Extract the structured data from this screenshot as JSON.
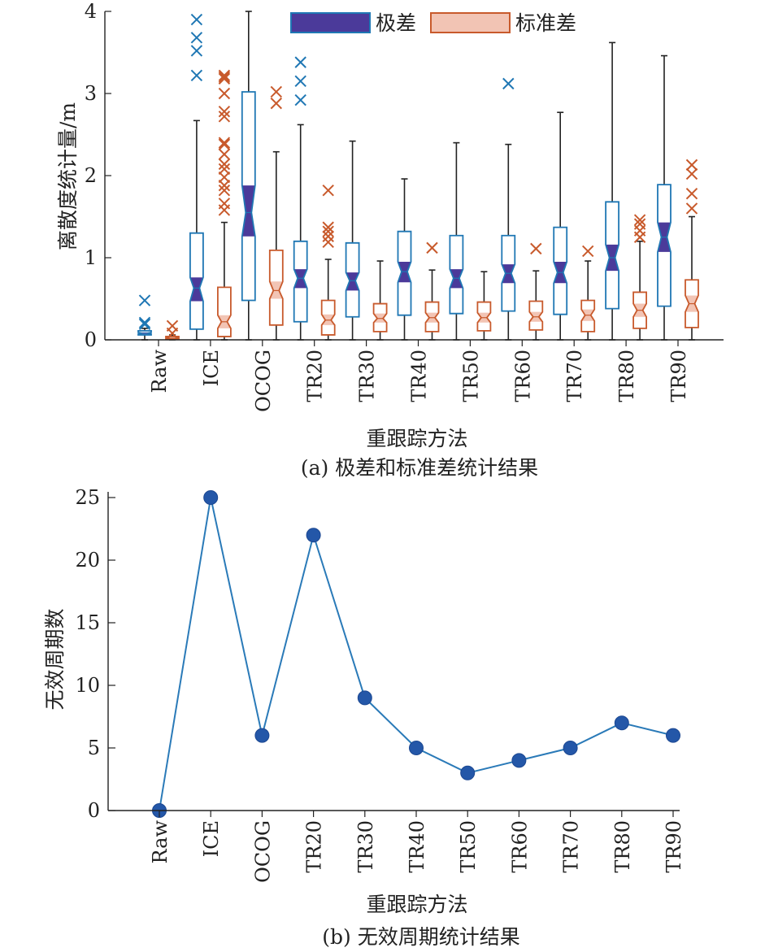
{
  "figure": {
    "caption_a": "(a) 极差和标准差统计结果",
    "caption_b": "(b) 无效周期统计结果"
  },
  "chart_data": [
    {
      "type": "box",
      "xlabel": "重跟踪方法",
      "ylabel": "离散度统计量/m",
      "ylim": [
        0,
        4
      ],
      "yticks": [
        0,
        1,
        2,
        3,
        4
      ],
      "categories": [
        "Raw",
        "ICE",
        "OCOG",
        "TR20",
        "TR30",
        "TR40",
        "TR50",
        "TR60",
        "TR70",
        "TR80",
        "TR90"
      ],
      "legend": {
        "position": "top-center",
        "entries": [
          "极差",
          "标准差"
        ]
      },
      "colors": {
        "range": "#1f77b4",
        "range_notch": "#4b3a9a",
        "std": "#c85a2c",
        "std_notch": "#f2c4b4",
        "whisker": "#222222"
      },
      "series": [
        {
          "name": "极差",
          "boxes": [
            {
              "whislo": 0.0,
              "q1": 0.06,
              "med": 0.08,
              "q3": 0.11,
              "whishi": 0.14,
              "cilo": 0.07,
              "cihi": 0.09,
              "fliers": [
                0.19,
                0.21,
                0.48
              ]
            },
            {
              "whislo": 0.0,
              "q1": 0.13,
              "med": 0.63,
              "q3": 1.3,
              "whishi": 2.67,
              "cilo": 0.47,
              "cihi": 0.76,
              "fliers": [
                3.22,
                3.52,
                3.68,
                3.9
              ]
            },
            {
              "whislo": 0.0,
              "q1": 0.48,
              "med": 1.55,
              "q3": 3.02,
              "whishi": 4.0,
              "cilo": 1.26,
              "cihi": 1.88,
              "fliers": []
            },
            {
              "whislo": 0.0,
              "q1": 0.22,
              "med": 0.75,
              "q3": 1.2,
              "whishi": 2.62,
              "cilo": 0.63,
              "cihi": 0.86,
              "fliers": [
                2.92,
                3.15,
                3.38
              ]
            },
            {
              "whislo": 0.0,
              "q1": 0.28,
              "med": 0.72,
              "q3": 1.18,
              "whishi": 2.42,
              "cilo": 0.6,
              "cihi": 0.82,
              "fliers": []
            },
            {
              "whislo": 0.0,
              "q1": 0.3,
              "med": 0.83,
              "q3": 1.32,
              "whishi": 1.96,
              "cilo": 0.7,
              "cihi": 0.95,
              "fliers": []
            },
            {
              "whislo": 0.0,
              "q1": 0.32,
              "med": 0.75,
              "q3": 1.27,
              "whishi": 2.4,
              "cilo": 0.63,
              "cihi": 0.86,
              "fliers": []
            },
            {
              "whislo": 0.0,
              "q1": 0.35,
              "med": 0.81,
              "q3": 1.27,
              "whishi": 2.38,
              "cilo": 0.69,
              "cihi": 0.92,
              "fliers": [
                3.12
              ]
            },
            {
              "whislo": 0.0,
              "q1": 0.31,
              "med": 0.82,
              "q3": 1.37,
              "whishi": 2.77,
              "cilo": 0.69,
              "cihi": 0.95,
              "fliers": []
            },
            {
              "whislo": 0.0,
              "q1": 0.38,
              "med": 1.0,
              "q3": 1.68,
              "whishi": 3.62,
              "cilo": 0.84,
              "cihi": 1.16,
              "fliers": []
            },
            {
              "whislo": 0.0,
              "q1": 0.41,
              "med": 1.25,
              "q3": 1.89,
              "whishi": 3.46,
              "cilo": 1.07,
              "cihi": 1.43,
              "fliers": []
            }
          ]
        },
        {
          "name": "标准差",
          "boxes": [
            {
              "whislo": 0.0,
              "q1": 0.01,
              "med": 0.02,
              "q3": 0.04,
              "whishi": 0.06,
              "cilo": 0.015,
              "cihi": 0.025,
              "fliers": [
                0.08,
                0.17
              ]
            },
            {
              "whislo": 0.0,
              "q1": 0.04,
              "med": 0.22,
              "q3": 0.64,
              "whishi": 1.43,
              "cilo": 0.14,
              "cihi": 0.3,
              "fliers": [
                1.58,
                1.66,
                1.82,
                1.88,
                1.98,
                2.08,
                2.14,
                2.26,
                2.38,
                2.4,
                2.72,
                2.78,
                3.0,
                3.18,
                3.2,
                3.22
              ]
            },
            {
              "whislo": 0.0,
              "q1": 0.18,
              "med": 0.6,
              "q3": 1.09,
              "whishi": 2.29,
              "cilo": 0.5,
              "cihi": 0.71,
              "fliers": [
                2.88,
                3.02
              ]
            },
            {
              "whislo": 0.0,
              "q1": 0.06,
              "med": 0.24,
              "q3": 0.48,
              "whishi": 0.98,
              "cilo": 0.18,
              "cihi": 0.31,
              "fliers": [
                1.19,
                1.26,
                1.32,
                1.37,
                1.82
              ]
            },
            {
              "whislo": 0.0,
              "q1": 0.1,
              "med": 0.26,
              "q3": 0.44,
              "whishi": 0.96,
              "cilo": 0.21,
              "cihi": 0.32,
              "fliers": []
            },
            {
              "whislo": 0.0,
              "q1": 0.1,
              "med": 0.27,
              "q3": 0.46,
              "whishi": 0.85,
              "cilo": 0.21,
              "cihi": 0.33,
              "fliers": [
                1.12
              ]
            },
            {
              "whislo": 0.0,
              "q1": 0.11,
              "med": 0.27,
              "q3": 0.46,
              "whishi": 0.83,
              "cilo": 0.21,
              "cihi": 0.33,
              "fliers": []
            },
            {
              "whislo": 0.0,
              "q1": 0.12,
              "med": 0.28,
              "q3": 0.47,
              "whishi": 0.84,
              "cilo": 0.22,
              "cihi": 0.34,
              "fliers": [
                1.11
              ]
            },
            {
              "whislo": 0.0,
              "q1": 0.1,
              "med": 0.3,
              "q3": 0.48,
              "whishi": 0.96,
              "cilo": 0.23,
              "cihi": 0.37,
              "fliers": [
                1.08
              ]
            },
            {
              "whislo": 0.0,
              "q1": 0.14,
              "med": 0.36,
              "q3": 0.58,
              "whishi": 1.2,
              "cilo": 0.28,
              "cihi": 0.44,
              "fliers": [
                1.25,
                1.33,
                1.41,
                1.46
              ]
            },
            {
              "whislo": 0.0,
              "q1": 0.15,
              "med": 0.44,
              "q3": 0.73,
              "whishi": 1.5,
              "cilo": 0.34,
              "cihi": 0.54,
              "fliers": [
                1.6,
                1.78,
                2.02,
                2.13
              ]
            }
          ]
        }
      ]
    },
    {
      "type": "line",
      "xlabel": "重跟踪方法",
      "ylabel": "无效周期数",
      "ylim": [
        0,
        25
      ],
      "yticks": [
        0,
        5,
        10,
        15,
        20,
        25
      ],
      "categories": [
        "Raw",
        "ICE",
        "OCOG",
        "TR20",
        "TR30",
        "TR40",
        "TR50",
        "TR60",
        "TR70",
        "TR80",
        "TR90"
      ],
      "colors": {
        "line": "#2a7ab8",
        "marker": "#2457a8"
      },
      "values": [
        0,
        25,
        6,
        22,
        9,
        5,
        3,
        4,
        5,
        7,
        6
      ]
    }
  ]
}
